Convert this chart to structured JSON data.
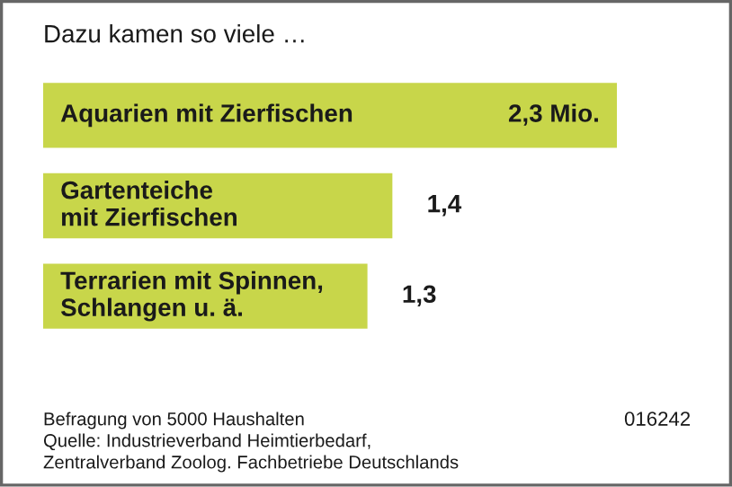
{
  "chart_data": {
    "type": "bar",
    "orientation": "horizontal",
    "title": "Dazu kamen so viele …",
    "categories": [
      "Aquarien mit Zierfischen",
      "Gartenteiche\nmit Zierfischen",
      "Terrarien mit Spinnen,\nSchlangen u. ä."
    ],
    "values": [
      2.3,
      1.4,
      1.3
    ],
    "value_labels": [
      "2,3 Mio.",
      "1,4",
      "1,3"
    ],
    "color": "#c8d64a",
    "annotations": [
      "Befragung von 5000 Haushalten\nQuelle: Industrieverband Heimtierbedarf,\nZentralverband Zoolog. Fachbetriebe Deutschlands",
      "016242"
    ]
  }
}
